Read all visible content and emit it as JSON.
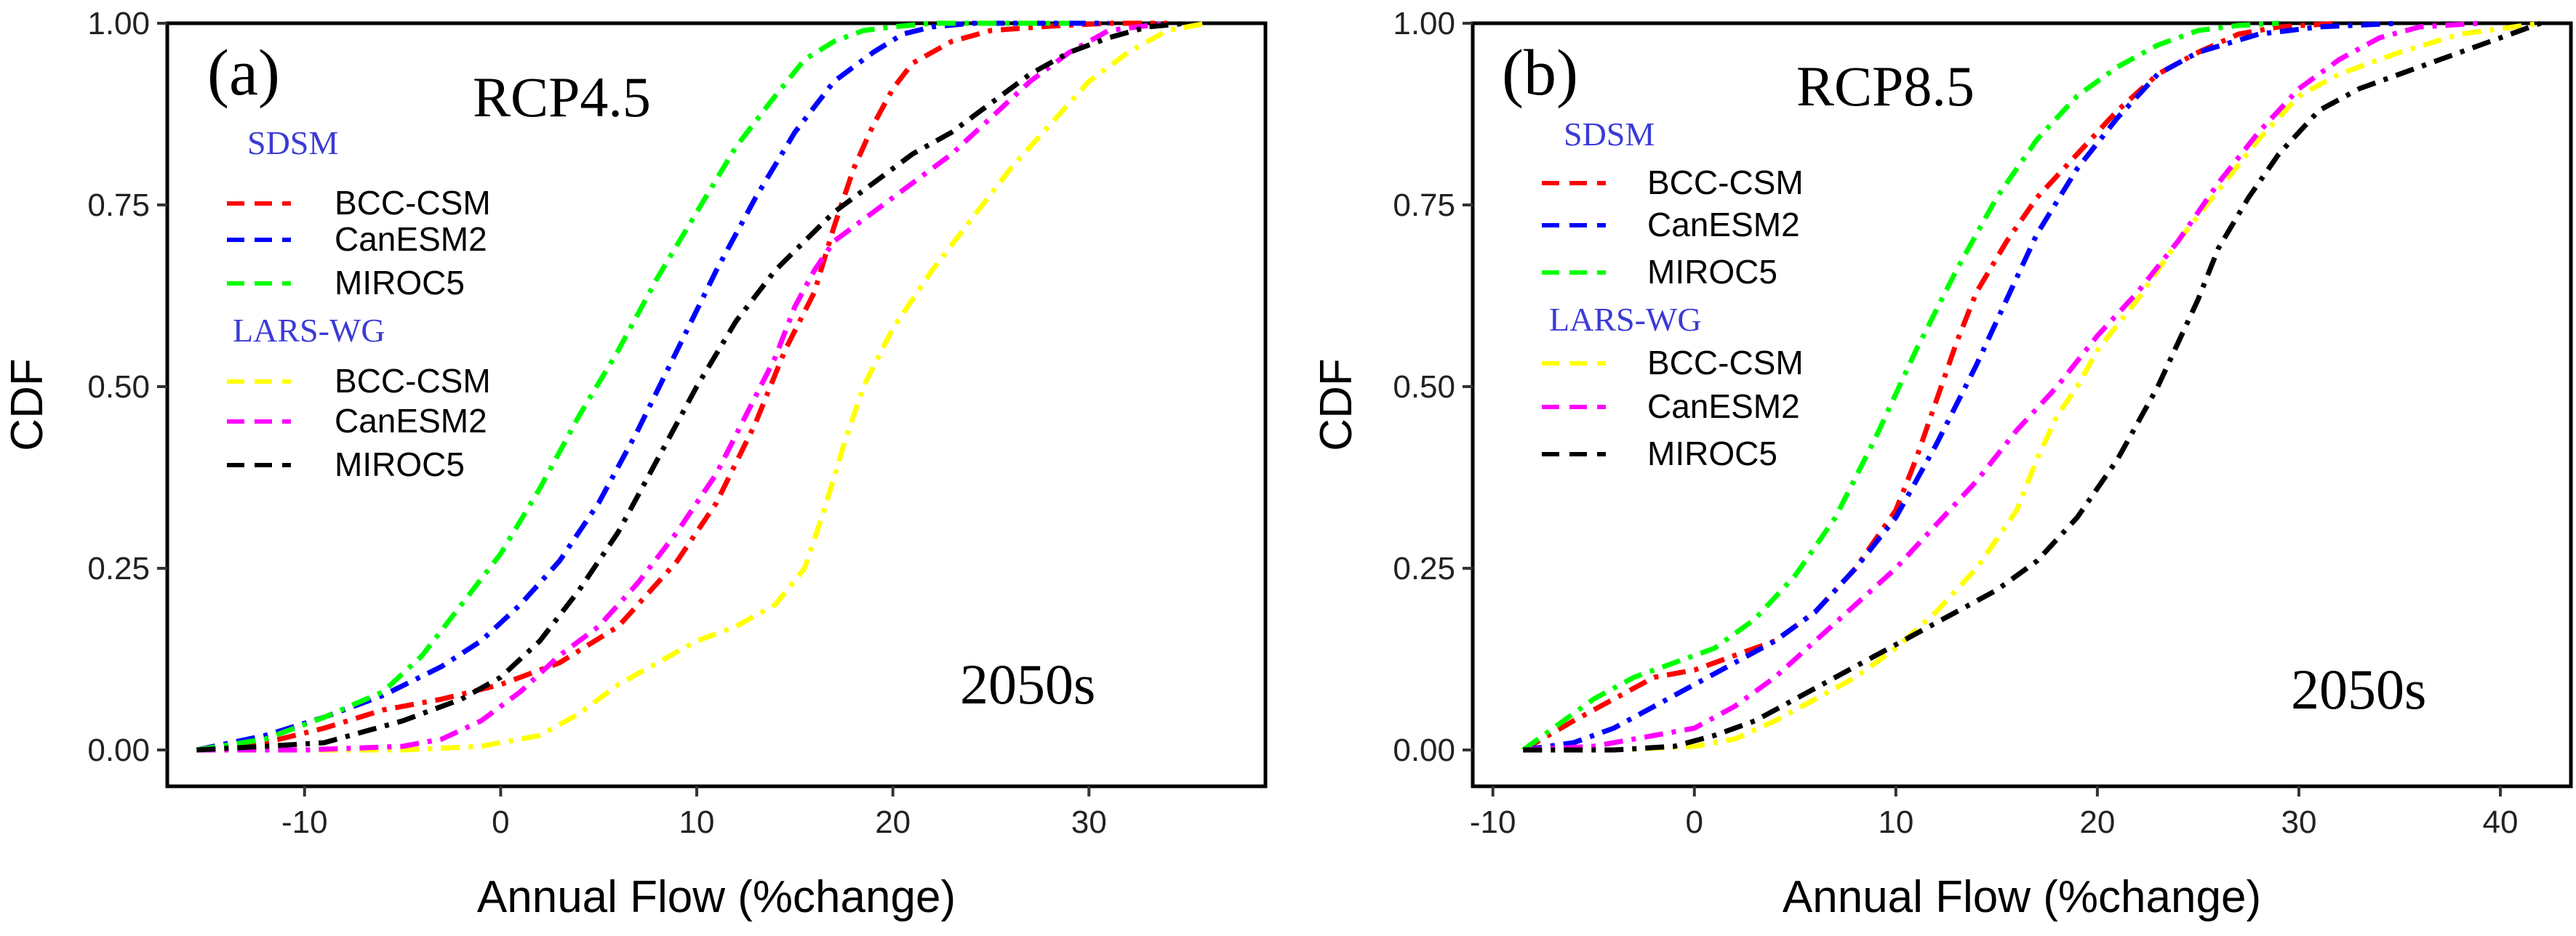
{
  "figure": {
    "colors": {
      "red": "#ff0000",
      "blue": "#0000ff",
      "green": "#00ff00",
      "yellow": "#ffff00",
      "magenta": "#ff00ff",
      "black": "#000000",
      "group_text": "#3b3bd6"
    }
  },
  "chart_data": [
    {
      "type": "line",
      "panel_label": "(a)",
      "scenario": "RCP4.5",
      "period": "2050s",
      "xlabel": "Annual Flow (%change)",
      "ylabel": "CDF",
      "xlim": [
        -17,
        39
      ],
      "ylim": [
        -0.05,
        1.0
      ],
      "xticks": [
        -10,
        0,
        10,
        20,
        30
      ],
      "xtick_labels": [
        "-10",
        "0",
        "10",
        "20",
        "30"
      ],
      "yticks": [
        0,
        0.25,
        0.5,
        0.75,
        1.0
      ],
      "ytick_labels": [
        "0.00",
        "0.25",
        "0.50",
        "0.75",
        "1.00"
      ],
      "legend": {
        "placement": "top-left",
        "groups": [
          {
            "name": "SDSM",
            "entries": [
              "BCC-CSM",
              "CanESM2",
              "MIROC5"
            ]
          },
          {
            "name": "LARS-WG",
            "entries": [
              "BCC-CSM",
              "CanESM2",
              "MIROC5"
            ]
          }
        ]
      },
      "series": [
        {
          "name": "SDSM BCC-CSM",
          "color": "red",
          "x": [
            -15.5,
            -12,
            -9,
            -6,
            -3,
            0,
            3,
            6,
            9,
            11,
            13,
            14.5,
            16,
            17,
            18,
            19,
            20,
            21,
            23,
            25,
            28,
            31,
            34
          ],
          "y": [
            0,
            0.01,
            0.03,
            0.055,
            0.07,
            0.09,
            0.12,
            0.17,
            0.26,
            0.34,
            0.45,
            0.55,
            0.63,
            0.72,
            0.8,
            0.86,
            0.91,
            0.945,
            0.975,
            0.99,
            0.996,
            1.0,
            1.0
          ]
        },
        {
          "name": "SDSM CanESM2",
          "color": "blue",
          "x": [
            -15.5,
            -12,
            -9,
            -6,
            -3,
            -1,
            1,
            3,
            5,
            7,
            9,
            11,
            13,
            15,
            17,
            19,
            20.5,
            22,
            24,
            27,
            31
          ],
          "y": [
            0,
            0.02,
            0.045,
            0.075,
            0.115,
            0.15,
            0.2,
            0.26,
            0.34,
            0.44,
            0.55,
            0.66,
            0.76,
            0.85,
            0.92,
            0.96,
            0.985,
            0.995,
            1.0,
            1.0,
            1.0
          ]
        },
        {
          "name": "SDSM MIROC5",
          "color": "green",
          "x": [
            -15.5,
            -12,
            -9,
            -6,
            -4,
            -2,
            0,
            2,
            4,
            6,
            8,
            10,
            12,
            14,
            15.5,
            17,
            18.5,
            20,
            22,
            25,
            29
          ],
          "y": [
            0,
            0.015,
            0.045,
            0.08,
            0.13,
            0.2,
            0.27,
            0.36,
            0.46,
            0.55,
            0.65,
            0.74,
            0.83,
            0.9,
            0.95,
            0.975,
            0.99,
            0.995,
            1.0,
            1.0,
            1.0
          ]
        },
        {
          "name": "LARS-WG BCC-CSM",
          "color": "yellow",
          "x": [
            -15.5,
            -10,
            -5,
            -1,
            2,
            4,
            6,
            8,
            10,
            12,
            14,
            15.5,
            16.5,
            17.5,
            18.5,
            20,
            22,
            24,
            26,
            28,
            30,
            32,
            34,
            36
          ],
          "y": [
            0,
            0,
            0,
            0.005,
            0.02,
            0.05,
            0.09,
            0.12,
            0.15,
            0.17,
            0.2,
            0.25,
            0.33,
            0.42,
            0.5,
            0.58,
            0.66,
            0.73,
            0.8,
            0.86,
            0.92,
            0.96,
            0.99,
            1.0
          ]
        },
        {
          "name": "LARS-WG CanESM2",
          "color": "magenta",
          "x": [
            -15.5,
            -10,
            -5,
            -3,
            -1,
            1,
            3,
            5,
            7,
            9,
            11,
            12.5,
            14,
            15,
            16,
            17,
            19,
            21,
            23,
            25,
            27,
            29,
            31,
            34
          ],
          "y": [
            0,
            0,
            0.005,
            0.015,
            0.04,
            0.08,
            0.13,
            0.17,
            0.23,
            0.3,
            0.38,
            0.46,
            0.54,
            0.61,
            0.66,
            0.7,
            0.74,
            0.78,
            0.82,
            0.87,
            0.92,
            0.96,
            0.99,
            1.0
          ]
        },
        {
          "name": "LARS-WG MIROC5",
          "color": "black",
          "x": [
            -15.5,
            -12,
            -9,
            -5,
            -2,
            0,
            2,
            4,
            6,
            8,
            10,
            12,
            14,
            15.5,
            17,
            19,
            21,
            23,
            25,
            27,
            29,
            31,
            33,
            35
          ],
          "y": [
            0,
            0.005,
            0.01,
            0.04,
            0.07,
            0.1,
            0.15,
            0.22,
            0.3,
            0.4,
            0.5,
            0.59,
            0.66,
            0.7,
            0.74,
            0.78,
            0.82,
            0.85,
            0.89,
            0.93,
            0.96,
            0.98,
            0.995,
            1.0
          ]
        }
      ]
    },
    {
      "type": "line",
      "panel_label": "(b)",
      "scenario": "RCP8.5",
      "period": "2050s",
      "xlabel": "Annual Flow (%change)",
      "ylabel": "CDF",
      "xlim": [
        -11,
        43.5
      ],
      "ylim": [
        -0.05,
        1.0
      ],
      "xticks": [
        -10,
        0,
        10,
        20,
        30,
        40
      ],
      "xtick_labels": [
        "-10",
        "0",
        "10",
        "20",
        "30",
        "40"
      ],
      "yticks": [
        0,
        0.25,
        0.5,
        0.75,
        1.0
      ],
      "ytick_labels": [
        "0.00",
        "0.25",
        "0.50",
        "0.75",
        "1.00"
      ],
      "legend": {
        "placement": "top-left",
        "groups": [
          {
            "name": "SDSM",
            "entries": [
              "BCC-CSM",
              "CanESM2",
              "MIROC5"
            ]
          },
          {
            "name": "LARS-WG",
            "entries": [
              "BCC-CSM",
              "CanESM2",
              "MIROC5"
            ]
          }
        ]
      },
      "series": [
        {
          "name": "SDSM BCC-CSM",
          "color": "red",
          "x": [
            -8.5,
            -6,
            -4,
            -2,
            0,
            2,
            4,
            6,
            8,
            10,
            11,
            12,
            13,
            14,
            15.5,
            17,
            19,
            21,
            23,
            25,
            27,
            29,
            32
          ],
          "y": [
            0,
            0.04,
            0.07,
            0.1,
            0.11,
            0.13,
            0.15,
            0.19,
            0.25,
            0.33,
            0.4,
            0.48,
            0.56,
            0.63,
            0.7,
            0.76,
            0.82,
            0.88,
            0.93,
            0.96,
            0.985,
            0.995,
            1.0
          ]
        },
        {
          "name": "SDSM CanESM2",
          "color": "blue",
          "x": [
            -8.5,
            -6,
            -4,
            -2,
            0,
            2,
            4,
            6,
            8,
            10,
            12,
            14,
            15.5,
            17,
            19,
            21,
            23,
            25,
            28,
            31,
            35
          ],
          "y": [
            0,
            0.01,
            0.03,
            0.06,
            0.09,
            0.12,
            0.15,
            0.19,
            0.25,
            0.32,
            0.42,
            0.53,
            0.62,
            0.71,
            0.8,
            0.87,
            0.93,
            0.96,
            0.985,
            0.995,
            1.0
          ]
        },
        {
          "name": "SDSM MIROC5",
          "color": "green",
          "x": [
            -8.5,
            -7,
            -5,
            -3,
            -1,
            1,
            3,
            5,
            7,
            9,
            11,
            13,
            15,
            17,
            19,
            21,
            23,
            25,
            27,
            29
          ],
          "y": [
            0,
            0.03,
            0.07,
            0.1,
            0.12,
            0.14,
            0.18,
            0.24,
            0.32,
            0.43,
            0.55,
            0.66,
            0.76,
            0.84,
            0.9,
            0.94,
            0.97,
            0.99,
            0.997,
            1.0
          ]
        },
        {
          "name": "LARS-WG BCC-CSM",
          "color": "yellow",
          "x": [
            -8.5,
            -4,
            0,
            2,
            4,
            6,
            8,
            10,
            12,
            14,
            16,
            17,
            18,
            19,
            20,
            22,
            24,
            26,
            28,
            30,
            32,
            35,
            38,
            42
          ],
          "y": [
            0,
            0,
            0.005,
            0.015,
            0.04,
            0.07,
            0.1,
            0.14,
            0.19,
            0.25,
            0.33,
            0.4,
            0.46,
            0.5,
            0.55,
            0.62,
            0.7,
            0.77,
            0.84,
            0.9,
            0.93,
            0.96,
            0.985,
            1.0
          ]
        },
        {
          "name": "LARS-WG CanESM2",
          "color": "magenta",
          "x": [
            -8.5,
            -5,
            -2,
            0,
            2,
            4,
            6,
            8,
            10,
            12,
            14,
            16,
            18,
            20,
            22,
            24,
            26,
            28,
            30,
            32,
            34,
            36,
            39
          ],
          "y": [
            0,
            0.005,
            0.02,
            0.03,
            0.06,
            0.1,
            0.15,
            0.2,
            0.25,
            0.31,
            0.37,
            0.44,
            0.5,
            0.57,
            0.63,
            0.7,
            0.78,
            0.85,
            0.91,
            0.95,
            0.98,
            0.995,
            1.0
          ]
        },
        {
          "name": "LARS-WG MIROC5",
          "color": "black",
          "x": [
            -8.5,
            -4,
            -1,
            1,
            3,
            5,
            7,
            9,
            11,
            13,
            15,
            17,
            19,
            21,
            22,
            23,
            24,
            25,
            26,
            27.5,
            29,
            31,
            33,
            36,
            39,
            42
          ],
          "y": [
            0,
            0,
            0.005,
            0.02,
            0.04,
            0.07,
            0.1,
            0.13,
            0.16,
            0.19,
            0.22,
            0.26,
            0.32,
            0.4,
            0.45,
            0.5,
            0.56,
            0.62,
            0.69,
            0.76,
            0.82,
            0.88,
            0.91,
            0.94,
            0.97,
            1.0
          ]
        }
      ]
    }
  ]
}
